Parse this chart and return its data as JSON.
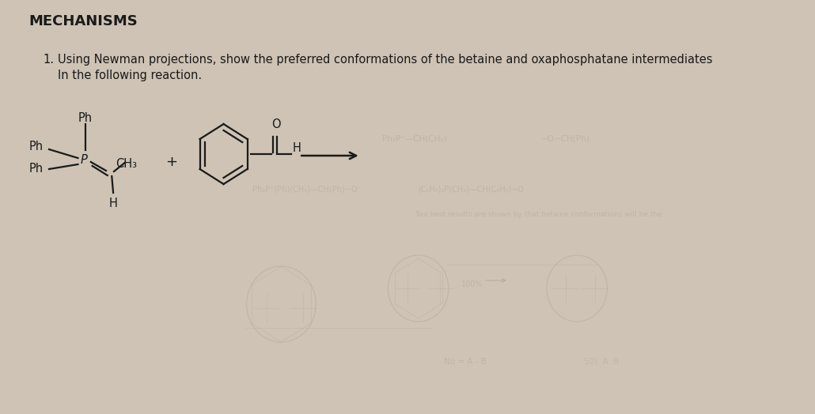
{
  "bg_color": "#cec3b5",
  "title": "MECHANISMS",
  "title_fontsize": 13,
  "title_fontweight": "bold",
  "question_number": "1.",
  "question_text_line1": "Using Newman projections, show the preferred conformations of the betaine and oxaphosphatane intermediates",
  "question_text_line2": "In the following reaction.",
  "question_fontsize": 10.5,
  "text_color": "#1a1a1a",
  "faint_color": "#b0a496",
  "faint_alpha": 0.45
}
